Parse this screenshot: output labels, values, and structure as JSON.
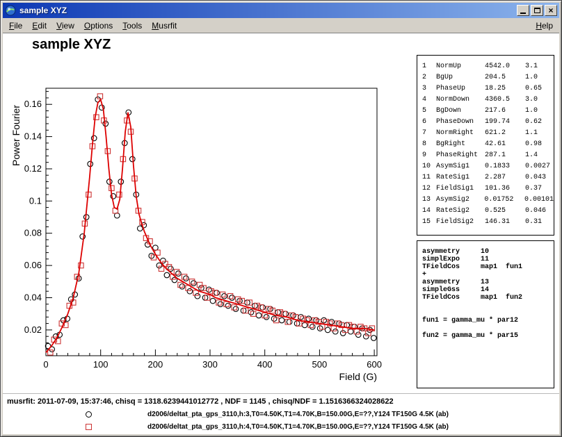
{
  "window": {
    "title": "sample XYZ",
    "controls": {
      "close_glyph": "×"
    }
  },
  "menu": {
    "items": [
      "File",
      "Edit",
      "View",
      "Options",
      "Tools",
      "Musrfit"
    ],
    "help": "Help"
  },
  "canvas": {
    "title": "sample XYZ"
  },
  "colors": {
    "titlebar_left": "#0c38b4",
    "titlebar_right": "#8cb4ec",
    "chrome": "#d4d0c8",
    "circle_marker": "#000000",
    "square_marker": "#cc3333",
    "fit_line": "#dd0000"
  },
  "parameters": {
    "rows": [
      {
        "no": "1",
        "name": "NormUp",
        "value": "4542.0",
        "error": "3.1"
      },
      {
        "no": "2",
        "name": "BgUp",
        "value": "204.5",
        "error": "1.0"
      },
      {
        "no": "3",
        "name": "PhaseUp",
        "value": "18.25",
        "error": "0.65"
      },
      {
        "no": "4",
        "name": "NormDown",
        "value": "4360.5",
        "error": "3.0"
      },
      {
        "no": "5",
        "name": "BgDown",
        "value": "217.6",
        "error": "1.0"
      },
      {
        "no": "6",
        "name": "PhaseDown",
        "value": "199.74",
        "error": "0.62"
      },
      {
        "no": "7",
        "name": "NormRight",
        "value": "621.2",
        "error": "1.1"
      },
      {
        "no": "8",
        "name": "BgRight",
        "value": "42.61",
        "error": "0.98"
      },
      {
        "no": "9",
        "name": "PhaseRight",
        "value": "287.1",
        "error": "1.4"
      },
      {
        "no": "10",
        "name": "AsymSig1",
        "value": "0.1833",
        "error": "0.0027"
      },
      {
        "no": "11",
        "name": "RateSig1",
        "value": "2.287",
        "error": "0.043"
      },
      {
        "no": "12",
        "name": "FieldSig1",
        "value": "101.36",
        "error": "0.37"
      },
      {
        "no": "13",
        "name": "AsymSig2",
        "value": "0.01752",
        "error": "0.00101"
      },
      {
        "no": "14",
        "name": "RateSig2",
        "value": "0.525",
        "error": "0.046"
      },
      {
        "no": "15",
        "name": "FieldSig2",
        "value": "146.31",
        "error": "0.31"
      }
    ]
  },
  "theory": {
    "lines": [
      "asymmetry     10",
      "simplExpo     11",
      "TFieldCos     map1  fun1",
      "+",
      "asymmetry     13",
      "simpleGss     14",
      "TFieldCos     map1  fun2",
      "",
      "",
      "fun1 = gamma_mu * par12",
      "",
      "fun2 = gamma_mu * par15"
    ]
  },
  "status": {
    "text": "musrfit: 2011-07-09, 15:37:46, chisq = 1318.6239441012772 , NDF = 1145 , chisq/NDF = 1.1516366324028622"
  },
  "legend": {
    "entries": [
      {
        "marker": "circle",
        "color": "#000000",
        "label": "d2006/deltat_pta_gps_3110,h:3,T0=4.50K,T1=4.70K,B=150.00G,E=??,Y124 TF150G 4.5K (ab)"
      },
      {
        "marker": "square",
        "color": "#cc3333",
        "label": "d2006/deltat_pta_gps_3110,h:4,T0=4.50K,T1=4.70K,B=150.00G,E=??,Y124 TF150G 4.5K (ab)"
      }
    ]
  },
  "chart_data": {
    "type": "scatter",
    "title": "sample XYZ",
    "xlabel": "Field (G)",
    "ylabel": "Power Fourier",
    "xlim": [
      0,
      605
    ],
    "ylim": [
      0.004,
      0.17
    ],
    "x_ticks": [
      0,
      100,
      200,
      300,
      400,
      500,
      600
    ],
    "y_ticks": [
      0.02,
      0.04,
      0.06,
      0.08,
      0.1,
      0.12,
      0.14,
      0.16
    ],
    "x_minor_step": 20,
    "y_minor_step": 0.004,
    "grid": false,
    "legend_position": "below-canvas",
    "fit_line": {
      "color": "#dd0000",
      "x": [
        0,
        10,
        20,
        30,
        40,
        50,
        60,
        70,
        80,
        85,
        90,
        95,
        100,
        105,
        110,
        115,
        120,
        125,
        130,
        135,
        140,
        145,
        150,
        155,
        160,
        165,
        170,
        175,
        180,
        190,
        200,
        210,
        220,
        230,
        240,
        250,
        260,
        270,
        280,
        290,
        300,
        310,
        320,
        330,
        340,
        350,
        360,
        370,
        380,
        390,
        400,
        420,
        440,
        460,
        480,
        500,
        520,
        540,
        560,
        580,
        600
      ],
      "y": [
        0.006,
        0.01,
        0.015,
        0.022,
        0.03,
        0.04,
        0.055,
        0.08,
        0.115,
        0.135,
        0.152,
        0.161,
        0.163,
        0.157,
        0.14,
        0.12,
        0.104,
        0.096,
        0.095,
        0.101,
        0.12,
        0.143,
        0.155,
        0.146,
        0.122,
        0.103,
        0.092,
        0.086,
        0.081,
        0.073,
        0.067,
        0.062,
        0.058,
        0.055,
        0.052,
        0.05,
        0.048,
        0.046,
        0.044,
        0.043,
        0.042,
        0.04,
        0.039,
        0.038,
        0.037,
        0.036,
        0.035,
        0.034,
        0.033,
        0.032,
        0.031,
        0.029,
        0.028,
        0.026,
        0.025,
        0.024,
        0.023,
        0.022,
        0.021,
        0.021,
        0.02
      ]
    },
    "series": [
      {
        "name": "d2006/deltat_pta_gps_3110,h:3,T0=4.50K,T1=4.70K,B=150.00G,E=??,Y124 TF150G 4.5K (ab)",
        "marker": "circle",
        "color": "#000000",
        "x": [
          4,
          11,
          18,
          25,
          32,
          39,
          46,
          53,
          60,
          67,
          74,
          81,
          88,
          95,
          102,
          109,
          116,
          123,
          130,
          137,
          144,
          151,
          158,
          165,
          172,
          179,
          186,
          193,
          200,
          207,
          214,
          221,
          228,
          235,
          242,
          249,
          256,
          263,
          270,
          277,
          284,
          291,
          298,
          305,
          312,
          319,
          326,
          333,
          340,
          347,
          354,
          361,
          368,
          375,
          382,
          389,
          396,
          403,
          410,
          417,
          424,
          431,
          438,
          445,
          452,
          459,
          466,
          473,
          480,
          487,
          494,
          501,
          508,
          515,
          522,
          529,
          536,
          543,
          550,
          557,
          564,
          571,
          578,
          585,
          592,
          599
        ],
        "y": [
          0.01,
          0.008,
          0.016,
          0.017,
          0.026,
          0.027,
          0.039,
          0.042,
          0.052,
          0.078,
          0.09,
          0.123,
          0.139,
          0.163,
          0.158,
          0.148,
          0.112,
          0.103,
          0.091,
          0.112,
          0.136,
          0.155,
          0.126,
          0.104,
          0.083,
          0.085,
          0.073,
          0.066,
          0.071,
          0.06,
          0.063,
          0.054,
          0.058,
          0.051,
          0.055,
          0.047,
          0.052,
          0.044,
          0.049,
          0.041,
          0.046,
          0.04,
          0.045,
          0.038,
          0.043,
          0.036,
          0.041,
          0.035,
          0.04,
          0.033,
          0.038,
          0.032,
          0.037,
          0.031,
          0.035,
          0.029,
          0.034,
          0.028,
          0.033,
          0.027,
          0.031,
          0.026,
          0.03,
          0.025,
          0.029,
          0.024,
          0.028,
          0.023,
          0.027,
          0.022,
          0.026,
          0.021,
          0.026,
          0.02,
          0.025,
          0.019,
          0.024,
          0.018,
          0.023,
          0.019,
          0.022,
          0.017,
          0.021,
          0.016,
          0.02,
          0.015
        ]
      },
      {
        "name": "d2006/deltat_pta_gps_3110,h:4,T0=4.50K,T1=4.70K,B=150.00G,E=??,Y124 TF150G 4.5K (ab)",
        "marker": "square",
        "color": "#cc3333",
        "x": [
          8,
          15,
          22,
          29,
          36,
          43,
          50,
          57,
          64,
          71,
          78,
          85,
          92,
          99,
          106,
          113,
          120,
          127,
          134,
          141,
          148,
          155,
          162,
          169,
          176,
          183,
          190,
          197,
          204,
          211,
          218,
          225,
          232,
          239,
          246,
          253,
          260,
          267,
          274,
          281,
          288,
          295,
          302,
          309,
          316,
          323,
          330,
          337,
          344,
          351,
          358,
          365,
          372,
          379,
          386,
          393,
          400,
          407,
          414,
          421,
          428,
          435,
          442,
          449,
          456,
          463,
          470,
          477,
          484,
          491,
          498,
          505,
          512,
          519,
          526,
          533,
          540,
          547,
          554,
          561,
          568,
          575,
          582,
          589,
          596
        ],
        "y": [
          0.006,
          0.014,
          0.013,
          0.024,
          0.023,
          0.035,
          0.037,
          0.053,
          0.06,
          0.086,
          0.104,
          0.134,
          0.152,
          0.165,
          0.15,
          0.131,
          0.108,
          0.094,
          0.104,
          0.126,
          0.15,
          0.143,
          0.114,
          0.094,
          0.087,
          0.077,
          0.075,
          0.065,
          0.068,
          0.058,
          0.061,
          0.059,
          0.053,
          0.056,
          0.048,
          0.053,
          0.046,
          0.05,
          0.043,
          0.048,
          0.046,
          0.04,
          0.044,
          0.043,
          0.037,
          0.042,
          0.036,
          0.041,
          0.034,
          0.039,
          0.038,
          0.032,
          0.037,
          0.03,
          0.035,
          0.034,
          0.029,
          0.033,
          0.032,
          0.026,
          0.031,
          0.03,
          0.025,
          0.029,
          0.028,
          0.024,
          0.027,
          0.026,
          0.023,
          0.026,
          0.025,
          0.022,
          0.025,
          0.024,
          0.021,
          0.024,
          0.023,
          0.02,
          0.023,
          0.022,
          0.019,
          0.022,
          0.021,
          0.018,
          0.021
        ]
      }
    ]
  }
}
